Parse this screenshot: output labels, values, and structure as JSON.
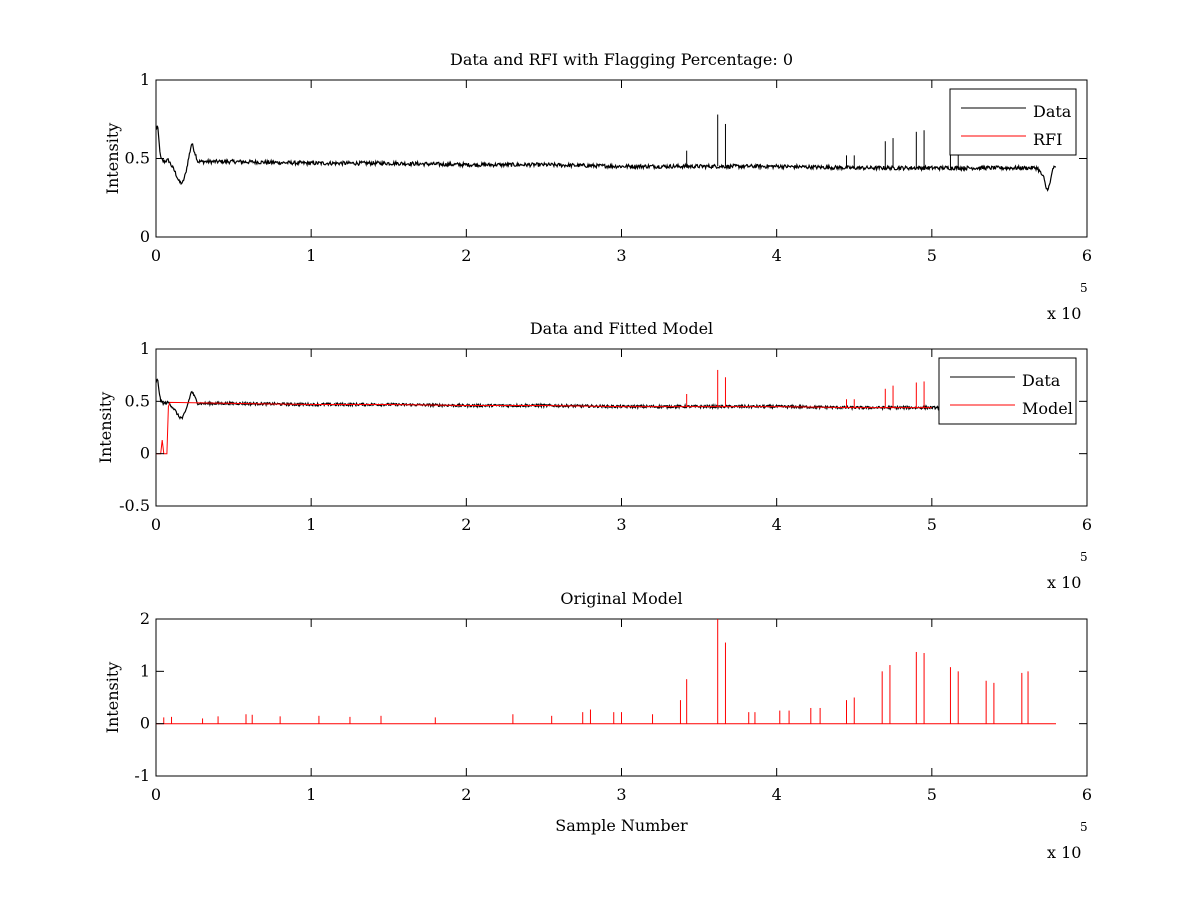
{
  "colors": {
    "data": "#000000",
    "rfi": "#ff0000",
    "model": "#ff0000",
    "original": "#ff0000"
  },
  "chart_data": [
    {
      "type": "line",
      "title": "Data and RFI with Flagging Percentage: 0",
      "xlabel": "",
      "ylabel": "Intensity",
      "xlim": [
        0,
        6
      ],
      "ylim": [
        0,
        1
      ],
      "x_multiplier": "x 10",
      "x_exponent": "5",
      "xticks": [
        "0",
        "1",
        "2",
        "3",
        "4",
        "5",
        "6"
      ],
      "yticks": [
        "0",
        "0.5",
        "1"
      ],
      "legend": {
        "position": "top-right",
        "entries": [
          "Data",
          "RFI"
        ]
      },
      "series": [
        {
          "name": "Data",
          "color": "#000000",
          "x": [
            0,
            0.01,
            0.02,
            0.03,
            0.05,
            0.08,
            0.12,
            0.15,
            0.17,
            0.19,
            0.21,
            0.23,
            0.27,
            0.5,
            1.0,
            1.5,
            2.0,
            2.5,
            3.0,
            3.5,
            4.0,
            4.5,
            5.0,
            5.5,
            5.68,
            5.72,
            5.74,
            5.76,
            5.78,
            5.8
          ],
          "y": [
            0.68,
            0.71,
            0.6,
            0.5,
            0.48,
            0.49,
            0.42,
            0.35,
            0.34,
            0.4,
            0.5,
            0.6,
            0.48,
            0.48,
            0.47,
            0.47,
            0.46,
            0.46,
            0.45,
            0.45,
            0.45,
            0.44,
            0.44,
            0.44,
            0.44,
            0.38,
            0.3,
            0.33,
            0.44,
            0.44
          ]
        },
        {
          "name": "RFI",
          "color": "#ff0000",
          "x": [],
          "y": []
        }
      ],
      "spikes": [
        {
          "x": 3.42,
          "y": 0.55
        },
        {
          "x": 3.62,
          "y": 0.78
        },
        {
          "x": 3.67,
          "y": 0.72
        },
        {
          "x": 4.45,
          "y": 0.52
        },
        {
          "x": 4.5,
          "y": 0.52
        },
        {
          "x": 4.7,
          "y": 0.61
        },
        {
          "x": 4.75,
          "y": 0.63
        },
        {
          "x": 4.9,
          "y": 0.67
        },
        {
          "x": 4.95,
          "y": 0.68
        },
        {
          "x": 5.12,
          "y": 0.55
        },
        {
          "x": 5.17,
          "y": 0.54
        }
      ]
    },
    {
      "type": "line",
      "title": "Data and Fitted Model",
      "xlabel": "",
      "ylabel": "Intensity",
      "xlim": [
        0,
        6
      ],
      "ylim": [
        -0.5,
        1
      ],
      "x_multiplier": "x 10",
      "x_exponent": "5",
      "xticks": [
        "0",
        "1",
        "2",
        "3",
        "4",
        "5",
        "6"
      ],
      "yticks": [
        "-0.5",
        "0",
        "0.5",
        "1"
      ],
      "legend": {
        "position": "top-right",
        "entries": [
          "Data",
          "Model"
        ]
      },
      "series": [
        {
          "name": "Data",
          "color": "#000000",
          "x": [
            0,
            0.01,
            0.02,
            0.03,
            0.05,
            0.08,
            0.12,
            0.15,
            0.17,
            0.19,
            0.21,
            0.23,
            0.27,
            0.5,
            1.0,
            1.5,
            2.0,
            2.5,
            3.0,
            3.5,
            4.0,
            4.5,
            5.0,
            5.4
          ],
          "y": [
            0.68,
            0.71,
            0.6,
            0.5,
            0.48,
            0.49,
            0.42,
            0.35,
            0.34,
            0.4,
            0.5,
            0.6,
            0.48,
            0.48,
            0.47,
            0.47,
            0.46,
            0.46,
            0.45,
            0.45,
            0.45,
            0.44,
            0.44,
            0.44
          ]
        },
        {
          "name": "Model",
          "color": "#ff0000",
          "x": [
            0,
            0.03,
            0.04,
            0.05,
            0.07,
            0.08,
            0.09,
            0.5,
            1.0,
            1.5,
            2.0,
            2.5,
            3.0,
            3.5,
            4.0,
            4.5,
            5.0
          ],
          "y": [
            0.0,
            0.0,
            0.13,
            0.0,
            0.0,
            0.45,
            0.49,
            0.48,
            0.47,
            0.47,
            0.46,
            0.46,
            0.45,
            0.45,
            0.45,
            0.44,
            0.44
          ]
        }
      ],
      "spikes": [
        {
          "x": 3.42,
          "y": 0.57
        },
        {
          "x": 3.62,
          "y": 0.8
        },
        {
          "x": 3.67,
          "y": 0.73
        },
        {
          "x": 4.45,
          "y": 0.52
        },
        {
          "x": 4.5,
          "y": 0.52
        },
        {
          "x": 4.7,
          "y": 0.62
        },
        {
          "x": 4.75,
          "y": 0.65
        },
        {
          "x": 4.9,
          "y": 0.68
        },
        {
          "x": 4.95,
          "y": 0.69
        }
      ]
    },
    {
      "type": "line",
      "title": "Original Model",
      "xlabel": "Sample Number",
      "ylabel": "Intensity",
      "xlim": [
        0,
        6
      ],
      "ylim": [
        -1,
        2
      ],
      "x_multiplier": "x 10",
      "x_exponent": "5",
      "xticks": [
        "0",
        "1",
        "2",
        "3",
        "4",
        "5",
        "6"
      ],
      "yticks": [
        "-1",
        "0",
        "1",
        "2"
      ],
      "series": [
        {
          "name": "",
          "color": "#ff0000",
          "x": [
            0,
            5.8
          ],
          "y": [
            0,
            0
          ]
        }
      ],
      "spikes": [
        {
          "x": 0.05,
          "y": 0.12
        },
        {
          "x": 0.1,
          "y": 0.13
        },
        {
          "x": 0.3,
          "y": 0.1
        },
        {
          "x": 0.4,
          "y": 0.14
        },
        {
          "x": 0.58,
          "y": 0.18
        },
        {
          "x": 0.62,
          "y": 0.17
        },
        {
          "x": 0.8,
          "y": 0.14
        },
        {
          "x": 1.05,
          "y": 0.15
        },
        {
          "x": 1.25,
          "y": 0.13
        },
        {
          "x": 1.45,
          "y": 0.15
        },
        {
          "x": 1.8,
          "y": 0.12
        },
        {
          "x": 2.3,
          "y": 0.18
        },
        {
          "x": 2.55,
          "y": 0.15
        },
        {
          "x": 2.75,
          "y": 0.22
        },
        {
          "x": 2.8,
          "y": 0.27
        },
        {
          "x": 2.95,
          "y": 0.22
        },
        {
          "x": 3.0,
          "y": 0.22
        },
        {
          "x": 3.2,
          "y": 0.18
        },
        {
          "x": 3.38,
          "y": 0.45
        },
        {
          "x": 3.42,
          "y": 0.85
        },
        {
          "x": 3.62,
          "y": 2.0
        },
        {
          "x": 3.67,
          "y": 1.55
        },
        {
          "x": 3.82,
          "y": 0.22
        },
        {
          "x": 3.86,
          "y": 0.22
        },
        {
          "x": 4.02,
          "y": 0.25
        },
        {
          "x": 4.08,
          "y": 0.25
        },
        {
          "x": 4.22,
          "y": 0.3
        },
        {
          "x": 4.28,
          "y": 0.3
        },
        {
          "x": 4.45,
          "y": 0.45
        },
        {
          "x": 4.5,
          "y": 0.5
        },
        {
          "x": 4.68,
          "y": 1.0
        },
        {
          "x": 4.73,
          "y": 1.12
        },
        {
          "x": 4.9,
          "y": 1.37
        },
        {
          "x": 4.95,
          "y": 1.35
        },
        {
          "x": 5.12,
          "y": 1.08
        },
        {
          "x": 5.17,
          "y": 1.0
        },
        {
          "x": 5.35,
          "y": 0.82
        },
        {
          "x": 5.4,
          "y": 0.78
        },
        {
          "x": 5.58,
          "y": 0.97
        },
        {
          "x": 5.62,
          "y": 1.0
        }
      ]
    }
  ]
}
